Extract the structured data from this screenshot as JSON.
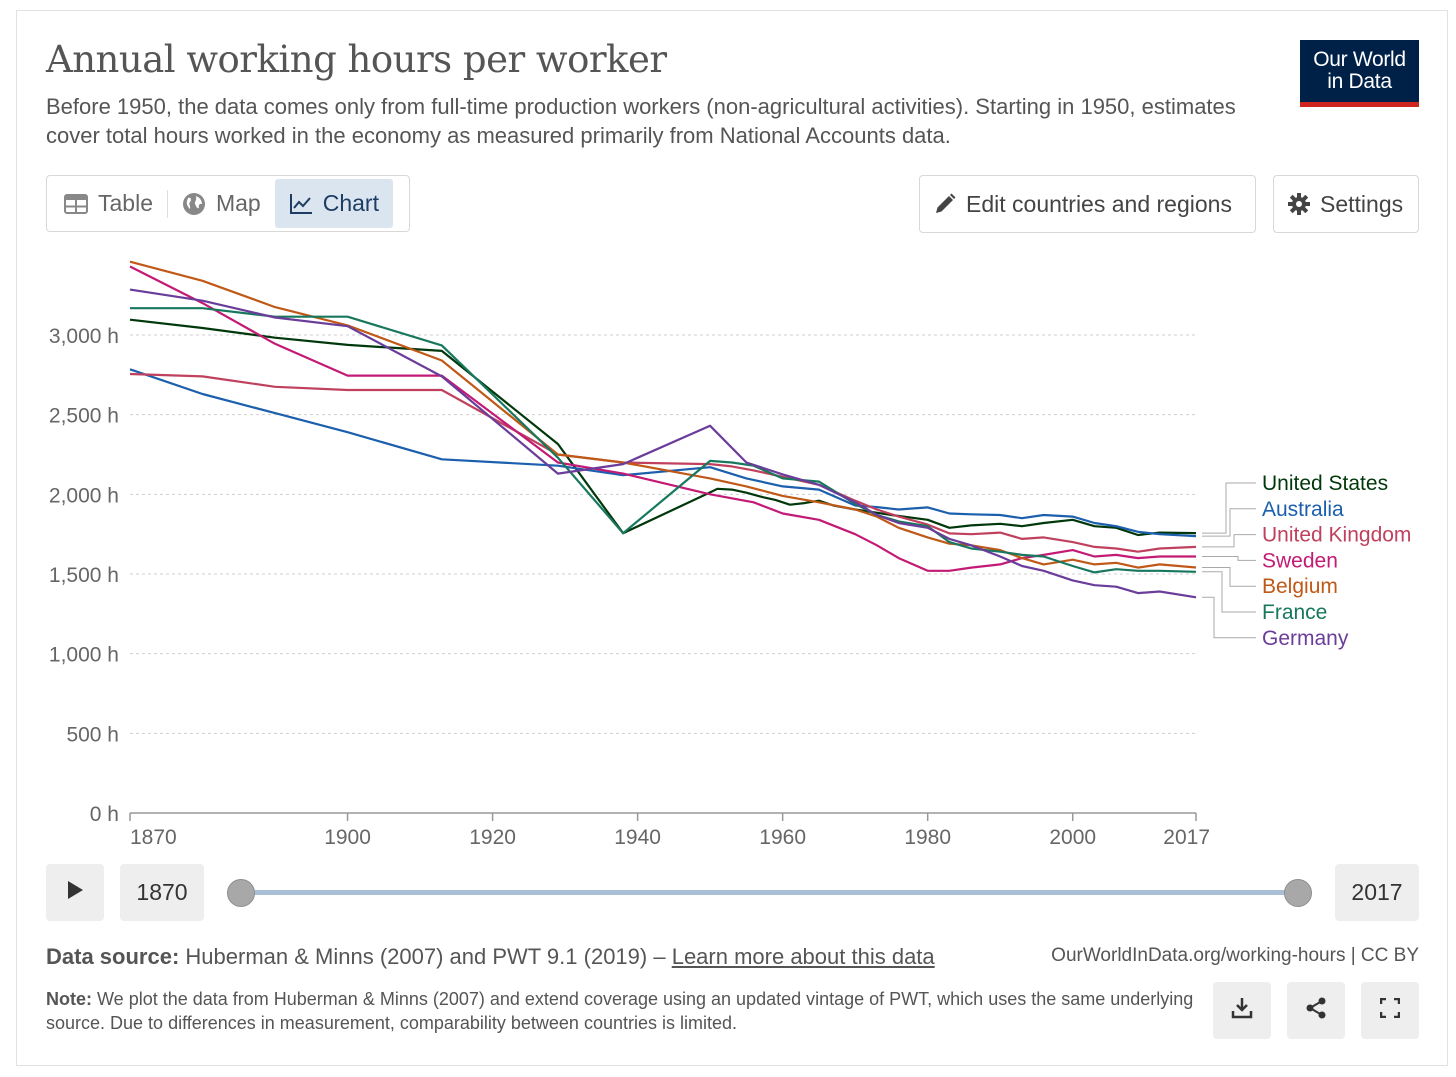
{
  "header": {
    "title": "Annual working hours per worker",
    "subtitle": "Before 1950, the data comes only from full-time production workers (non-agricultural activities). Starting in 1950, estimates cover total hours worked in the economy as measured primarily from National Accounts data.",
    "logo_line1": "Our World",
    "logo_line2": "in Data"
  },
  "tabs": [
    {
      "label": "Table",
      "icon": "table-icon"
    },
    {
      "label": "Map",
      "icon": "globe-icon"
    },
    {
      "label": "Chart",
      "icon": "line-chart-icon",
      "active": true
    }
  ],
  "toolbar": {
    "edit_label": "Edit countries and regions",
    "settings_label": "Settings"
  },
  "timeline": {
    "start_year": "1870",
    "end_year": "2017"
  },
  "footer": {
    "source_label": "Data source:",
    "source_text": "Huberman & Minns (2007) and PWT 9.1 (2019) –",
    "learn_more": "Learn more about this data",
    "site": "OurWorldInData.org/working-hours | CC BY",
    "note_label": "Note:",
    "note_text": "We plot the data from Huberman & Minns (2007) and extend coverage using an updated vintage of PWT, which uses the same underlying source. Due to differences in measurement, comparability between countries is limited."
  },
  "chart_data": {
    "type": "line",
    "xlim": [
      1870,
      2017
    ],
    "ylim": [
      0,
      3500
    ],
    "x_ticks": [
      "1870",
      "1900",
      "1920",
      "1940",
      "1960",
      "1980",
      "2000",
      "2017"
    ],
    "y_ticks": [
      "0 h",
      "500 h",
      "1,000 h",
      "1,500 h",
      "2,000 h",
      "2,500 h",
      "3,000 h"
    ],
    "y_tick_values": [
      0,
      500,
      1000,
      1500,
      2000,
      2500,
      3000
    ],
    "grid": "horizontal-dotted",
    "legend": "right",
    "series": [
      {
        "name": "United States",
        "color": "#00380b",
        "points": [
          [
            1870,
            3096
          ],
          [
            1880,
            3044
          ],
          [
            1890,
            2983
          ],
          [
            1900,
            2938
          ],
          [
            1913,
            2900
          ],
          [
            1929,
            2316
          ],
          [
            1938,
            1756
          ],
          [
            1950,
            2012
          ],
          [
            1951,
            2035
          ],
          [
            1953,
            2030
          ],
          [
            1955,
            2010
          ],
          [
            1957,
            1985
          ],
          [
            1959,
            1965
          ],
          [
            1961,
            1935
          ],
          [
            1963,
            1945
          ],
          [
            1965,
            1960
          ],
          [
            1967,
            1930
          ],
          [
            1970,
            1905
          ],
          [
            1975,
            1870
          ],
          [
            1980,
            1840
          ],
          [
            1983,
            1790
          ],
          [
            1986,
            1805
          ],
          [
            1990,
            1815
          ],
          [
            1993,
            1800
          ],
          [
            1996,
            1820
          ],
          [
            2000,
            1840
          ],
          [
            2003,
            1800
          ],
          [
            2006,
            1790
          ],
          [
            2009,
            1745
          ],
          [
            2012,
            1760
          ],
          [
            2017,
            1757
          ]
        ]
      },
      {
        "name": "Australia",
        "color": "#1b5fad",
        "points": [
          [
            1870,
            2785
          ],
          [
            1880,
            2630
          ],
          [
            1890,
            2510
          ],
          [
            1900,
            2390
          ],
          [
            1913,
            2220
          ],
          [
            1929,
            2180
          ],
          [
            1938,
            2120
          ],
          [
            1950,
            2170
          ],
          [
            1955,
            2100
          ],
          [
            1960,
            2050
          ],
          [
            1965,
            2030
          ],
          [
            1970,
            1930
          ],
          [
            1973,
            1920
          ],
          [
            1976,
            1905
          ],
          [
            1980,
            1918
          ],
          [
            1983,
            1880
          ],
          [
            1986,
            1875
          ],
          [
            1990,
            1870
          ],
          [
            1993,
            1850
          ],
          [
            1996,
            1870
          ],
          [
            2000,
            1860
          ],
          [
            2003,
            1820
          ],
          [
            2006,
            1800
          ],
          [
            2009,
            1765
          ],
          [
            2012,
            1750
          ],
          [
            2017,
            1738
          ]
        ]
      },
      {
        "name": "United Kingdom",
        "color": "#c0415e",
        "points": [
          [
            1870,
            2755
          ],
          [
            1880,
            2740
          ],
          [
            1890,
            2675
          ],
          [
            1900,
            2655
          ],
          [
            1913,
            2655
          ],
          [
            1929,
            2250
          ],
          [
            1938,
            2200
          ],
          [
            1950,
            2190
          ],
          [
            1953,
            2175
          ],
          [
            1956,
            2150
          ],
          [
            1960,
            2110
          ],
          [
            1965,
            2060
          ],
          [
            1970,
            1960
          ],
          [
            1973,
            1905
          ],
          [
            1976,
            1860
          ],
          [
            1980,
            1810
          ],
          [
            1983,
            1755
          ],
          [
            1986,
            1750
          ],
          [
            1990,
            1760
          ],
          [
            1993,
            1720
          ],
          [
            1996,
            1730
          ],
          [
            2000,
            1700
          ],
          [
            2003,
            1670
          ],
          [
            2006,
            1660
          ],
          [
            2009,
            1640
          ],
          [
            2012,
            1660
          ],
          [
            2017,
            1670
          ]
        ]
      },
      {
        "name": "Sweden",
        "color": "#c31a75",
        "points": [
          [
            1870,
            3430
          ],
          [
            1880,
            3200
          ],
          [
            1890,
            2945
          ],
          [
            1900,
            2745
          ],
          [
            1913,
            2745
          ],
          [
            1929,
            2200
          ],
          [
            1938,
            2130
          ],
          [
            1950,
            2000
          ],
          [
            1953,
            1975
          ],
          [
            1956,
            1950
          ],
          [
            1960,
            1880
          ],
          [
            1965,
            1840
          ],
          [
            1970,
            1750
          ],
          [
            1973,
            1680
          ],
          [
            1976,
            1600
          ],
          [
            1980,
            1520
          ],
          [
            1983,
            1520
          ],
          [
            1986,
            1540
          ],
          [
            1990,
            1560
          ],
          [
            1993,
            1600
          ],
          [
            1996,
            1620
          ],
          [
            2000,
            1650
          ],
          [
            2003,
            1610
          ],
          [
            2006,
            1620
          ],
          [
            2009,
            1600
          ],
          [
            2012,
            1610
          ],
          [
            2017,
            1610
          ]
        ]
      },
      {
        "name": "Belgium",
        "color": "#c05917",
        "points": [
          [
            1870,
            3460
          ],
          [
            1880,
            3340
          ],
          [
            1890,
            3175
          ],
          [
            1900,
            3060
          ],
          [
            1913,
            2840
          ],
          [
            1929,
            2250
          ],
          [
            1938,
            2200
          ],
          [
            1950,
            2100
          ],
          [
            1955,
            2050
          ],
          [
            1960,
            1990
          ],
          [
            1965,
            1950
          ],
          [
            1970,
            1905
          ],
          [
            1973,
            1860
          ],
          [
            1976,
            1790
          ],
          [
            1980,
            1730
          ],
          [
            1983,
            1690
          ],
          [
            1986,
            1680
          ],
          [
            1990,
            1650
          ],
          [
            1993,
            1600
          ],
          [
            1996,
            1560
          ],
          [
            2000,
            1590
          ],
          [
            2003,
            1560
          ],
          [
            2006,
            1570
          ],
          [
            2009,
            1540
          ],
          [
            2012,
            1560
          ],
          [
            2017,
            1541
          ]
        ]
      },
      {
        "name": "France",
        "color": "#18785d",
        "points": [
          [
            1870,
            3168
          ],
          [
            1880,
            3168
          ],
          [
            1890,
            3115
          ],
          [
            1900,
            3115
          ],
          [
            1913,
            2935
          ],
          [
            1929,
            2230
          ],
          [
            1938,
            1756
          ],
          [
            1950,
            2210
          ],
          [
            1953,
            2200
          ],
          [
            1956,
            2180
          ],
          [
            1960,
            2100
          ],
          [
            1965,
            2080
          ],
          [
            1970,
            1940
          ],
          [
            1973,
            1870
          ],
          [
            1976,
            1830
          ],
          [
            1980,
            1800
          ],
          [
            1983,
            1700
          ],
          [
            1986,
            1660
          ],
          [
            1990,
            1640
          ],
          [
            1993,
            1620
          ],
          [
            1996,
            1610
          ],
          [
            2000,
            1550
          ],
          [
            2003,
            1510
          ],
          [
            2006,
            1530
          ],
          [
            2009,
            1520
          ],
          [
            2012,
            1520
          ],
          [
            2017,
            1514
          ]
        ]
      },
      {
        "name": "Germany",
        "color": "#6a3d9a",
        "points": [
          [
            1870,
            3285
          ],
          [
            1880,
            3215
          ],
          [
            1890,
            3110
          ],
          [
            1900,
            3055
          ],
          [
            1913,
            2740
          ],
          [
            1929,
            2130
          ],
          [
            1938,
            2190
          ],
          [
            1950,
            2430
          ],
          [
            1955,
            2200
          ],
          [
            1960,
            2125
          ],
          [
            1965,
            2060
          ],
          [
            1970,
            1950
          ],
          [
            1973,
            1870
          ],
          [
            1976,
            1820
          ],
          [
            1980,
            1790
          ],
          [
            1983,
            1720
          ],
          [
            1986,
            1680
          ],
          [
            1990,
            1610
          ],
          [
            1993,
            1550
          ],
          [
            1996,
            1520
          ],
          [
            2000,
            1460
          ],
          [
            2003,
            1430
          ],
          [
            2006,
            1420
          ],
          [
            2009,
            1380
          ],
          [
            2012,
            1390
          ],
          [
            2017,
            1354
          ]
        ]
      }
    ]
  }
}
